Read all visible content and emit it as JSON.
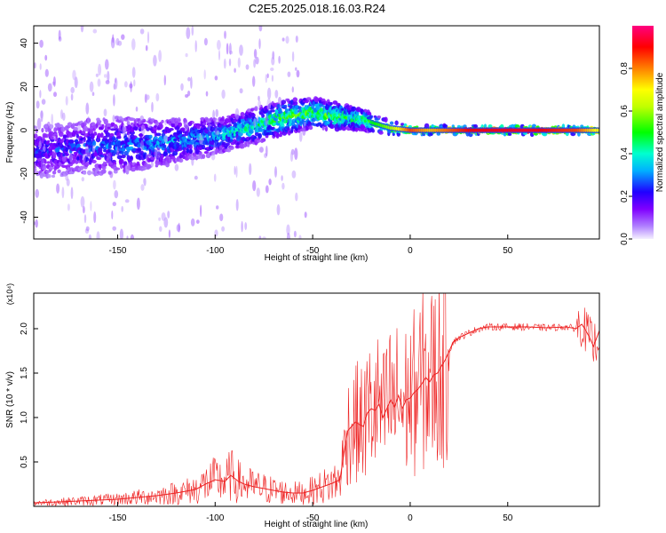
{
  "title": "C2E5.2025.018.16.03.R24",
  "chart_data": [
    {
      "type": "heatmap",
      "xlabel": "Height of straight line (km)",
      "ylabel": "Frequency (Hz)",
      "xlim": [
        -193,
        97
      ],
      "ylim": [
        -50,
        48
      ],
      "x_ticks": [
        -150,
        -100,
        -50,
        0,
        50
      ],
      "x_tick_labels": [
        "-150",
        "-100",
        "-50",
        "0",
        "50"
      ],
      "y_ticks": [
        -40,
        -20,
        0,
        20,
        40
      ],
      "y_tick_labels": [
        "-40",
        "-20",
        "0",
        "20",
        "40"
      ],
      "colorbar": {
        "label": "Normalized spectral amplitude",
        "range": [
          0,
          1
        ],
        "ticks": [
          0.0,
          0.2,
          0.4,
          0.6,
          0.8
        ],
        "tick_labels": [
          "0.0",
          "0.2",
          "0.4",
          "0.6",
          "0.8"
        ],
        "colormap": [
          "#e6e0ff",
          "#8000ff",
          "#0000ff",
          "#00ffff",
          "#00ff00",
          "#ffff00",
          "#ff8000",
          "#ff0000",
          "#ff0080"
        ]
      },
      "ridge": [
        {
          "x": -190,
          "f": -10,
          "amp": 0.22,
          "spread": 12
        },
        {
          "x": -170,
          "f": -8,
          "amp": 0.25,
          "spread": 12
        },
        {
          "x": -150,
          "f": -7,
          "amp": 0.28,
          "spread": 13
        },
        {
          "x": -130,
          "f": -6,
          "amp": 0.3,
          "spread": 11
        },
        {
          "x": -110,
          "f": -4,
          "amp": 0.33,
          "spread": 9
        },
        {
          "x": -95,
          "f": -2,
          "amp": 0.36,
          "spread": 8
        },
        {
          "x": -80,
          "f": 2,
          "amp": 0.42,
          "spread": 8
        },
        {
          "x": -65,
          "f": 6,
          "amp": 0.48,
          "spread": 8
        },
        {
          "x": -50,
          "f": 8,
          "amp": 0.52,
          "spread": 7
        },
        {
          "x": -35,
          "f": 6,
          "amp": 0.48,
          "spread": 6
        },
        {
          "x": -25,
          "f": 5,
          "amp": 0.45,
          "spread": 5
        },
        {
          "x": -18,
          "f": 3,
          "amp": 0.5,
          "spread": 4
        },
        {
          "x": -10,
          "f": 1,
          "amp": 0.6,
          "spread": 3
        },
        {
          "x": 0,
          "f": 0,
          "amp": 0.85,
          "spread": 2
        },
        {
          "x": 10,
          "f": 0,
          "amp": 0.75,
          "spread": 2
        },
        {
          "x": 30,
          "f": 0,
          "amp": 0.9,
          "spread": 2
        },
        {
          "x": 60,
          "f": 0,
          "amp": 0.92,
          "spread": 2
        },
        {
          "x": 85,
          "f": 0,
          "amp": 0.85,
          "spread": 2
        },
        {
          "x": 95,
          "f": 0,
          "amp": 0.7,
          "spread": 3
        }
      ]
    },
    {
      "type": "line",
      "xlabel": "Height of straight line (km)",
      "ylabel": "SNR (10 * v/v)",
      "y_multiplier": "(x10⁴)",
      "xlim": [
        -193,
        97
      ],
      "ylim": [
        0,
        24000
      ],
      "x_ticks": [
        -150,
        -100,
        -50,
        0,
        50
      ],
      "x_tick_labels": [
        "-150",
        "-100",
        "-50",
        "0",
        "50"
      ],
      "y_ticks": [
        5000,
        10000,
        15000,
        20000
      ],
      "y_tick_labels": [
        "0.5",
        "1.0",
        "1.5",
        "2.0"
      ],
      "series": [
        {
          "color": "#ee2222",
          "x": [
            -193,
            -180,
            -170,
            -160,
            -150,
            -140,
            -130,
            -120,
            -110,
            -105,
            -100,
            -95,
            -92,
            -88,
            -85,
            -80,
            -75,
            -70,
            -65,
            -60,
            -55,
            -50,
            -45,
            -40,
            -36,
            -34,
            -32,
            -30,
            -28,
            -26,
            -24,
            -22,
            -20,
            -18,
            -16,
            -14,
            -12,
            -10,
            -8,
            -6,
            -4,
            -2,
            0,
            2,
            4,
            6,
            8,
            10,
            12,
            14,
            16,
            18,
            20,
            22,
            25,
            30,
            35,
            40,
            50,
            60,
            70,
            80,
            85,
            88,
            90,
            92,
            94,
            97
          ],
          "y": [
            400,
            500,
            600,
            700,
            800,
            1000,
            1200,
            1500,
            1900,
            2500,
            3000,
            2800,
            3500,
            2800,
            2500,
            2200,
            2000,
            1800,
            1600,
            1500,
            1500,
            1800,
            2200,
            2600,
            3000,
            6000,
            8500,
            9000,
            9500,
            9200,
            9000,
            10500,
            11000,
            10800,
            11500,
            10000,
            11000,
            12000,
            11200,
            12500,
            11000,
            12000,
            12200,
            12800,
            13200,
            13800,
            14500,
            14000,
            14800,
            15000,
            15800,
            16500,
            17500,
            18500,
            19000,
            19500,
            20000,
            20200,
            20200,
            20200,
            20100,
            20200,
            20000,
            20500,
            19800,
            19000,
            18000,
            19800
          ]
        }
      ]
    }
  ]
}
